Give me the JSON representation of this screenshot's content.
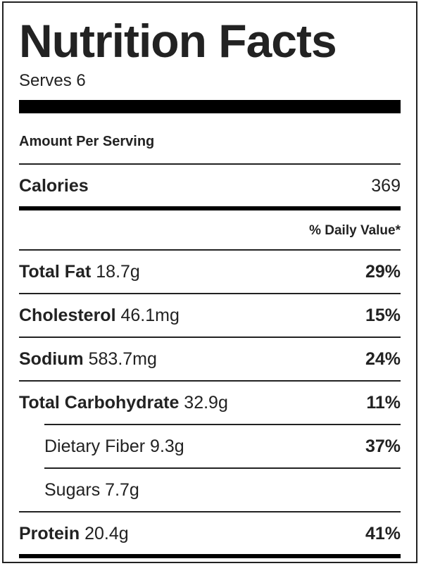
{
  "title": "Nutrition Facts",
  "serves": "Serves 6",
  "amount_per_serving": "Amount Per Serving",
  "calories": {
    "label": "Calories",
    "value": "369"
  },
  "daily_value_header": "% Daily Value*",
  "nutrients": [
    {
      "name": "Total Fat",
      "amount": "18.7g",
      "dv": "29%"
    },
    {
      "name": "Cholesterol",
      "amount": "46.1mg",
      "dv": "15%"
    },
    {
      "name": "Sodium",
      "amount": "583.7mg",
      "dv": "24%"
    },
    {
      "name": "Total Carbohydrate",
      "amount": "32.9g",
      "dv": "11%"
    },
    {
      "name": "Dietary Fiber",
      "amount": "9.3g",
      "dv": "37%"
    },
    {
      "name": "Sugars",
      "amount": "7.7g",
      "dv": ""
    },
    {
      "name": "Protein",
      "amount": "20.4g",
      "dv": "41%"
    }
  ]
}
